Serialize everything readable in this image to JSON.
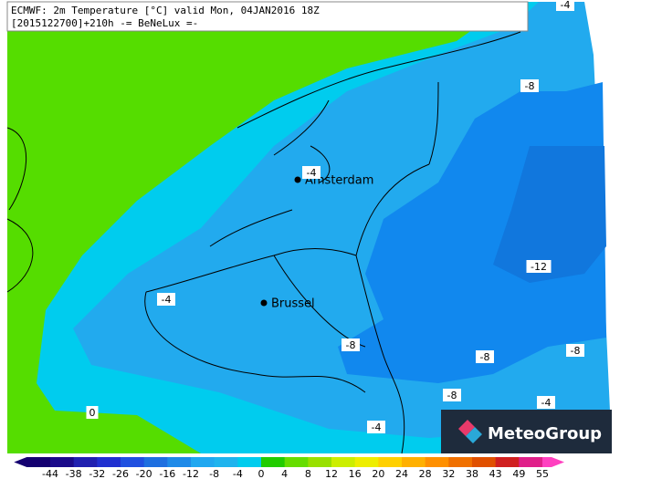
{
  "header": {
    "line1": "ECMWF: 2m Temperature [°C] valid Mon, 04JAN2016 18Z",
    "line2": "[2015122700]+210h -= BeNeLux =-"
  },
  "cities": [
    {
      "name": "Amsterdam"
    },
    {
      "name": "Brussel"
    }
  ],
  "contour_labels": [
    "-4",
    "-8",
    "-4",
    "-12",
    "-4",
    "-8",
    "-8",
    "-8",
    "-8",
    "-4",
    "-4",
    "0"
  ],
  "logo": "MeteoGroup",
  "colorbar": {
    "labels": [
      -44,
      -38,
      -32,
      -26,
      -20,
      -16,
      -12,
      -8,
      -4,
      0,
      4,
      8,
      12,
      16,
      20,
      24,
      28,
      32,
      38,
      43,
      49,
      55
    ],
    "colors": [
      "#140070",
      "#1a0a8a",
      "#2020b0",
      "#2030d0",
      "#2050e0",
      "#1e6fe0",
      "#1e8ae8",
      "#20a8f0",
      "#1fb4ee",
      "#00ccee",
      "#22cc00",
      "#66dd00",
      "#99e000",
      "#ccee00",
      "#eeee00",
      "#ffd000",
      "#ffb000",
      "#ff9000",
      "#f07000",
      "#e05000",
      "#d02020",
      "#e0208a",
      "#ff40c0"
    ]
  }
}
